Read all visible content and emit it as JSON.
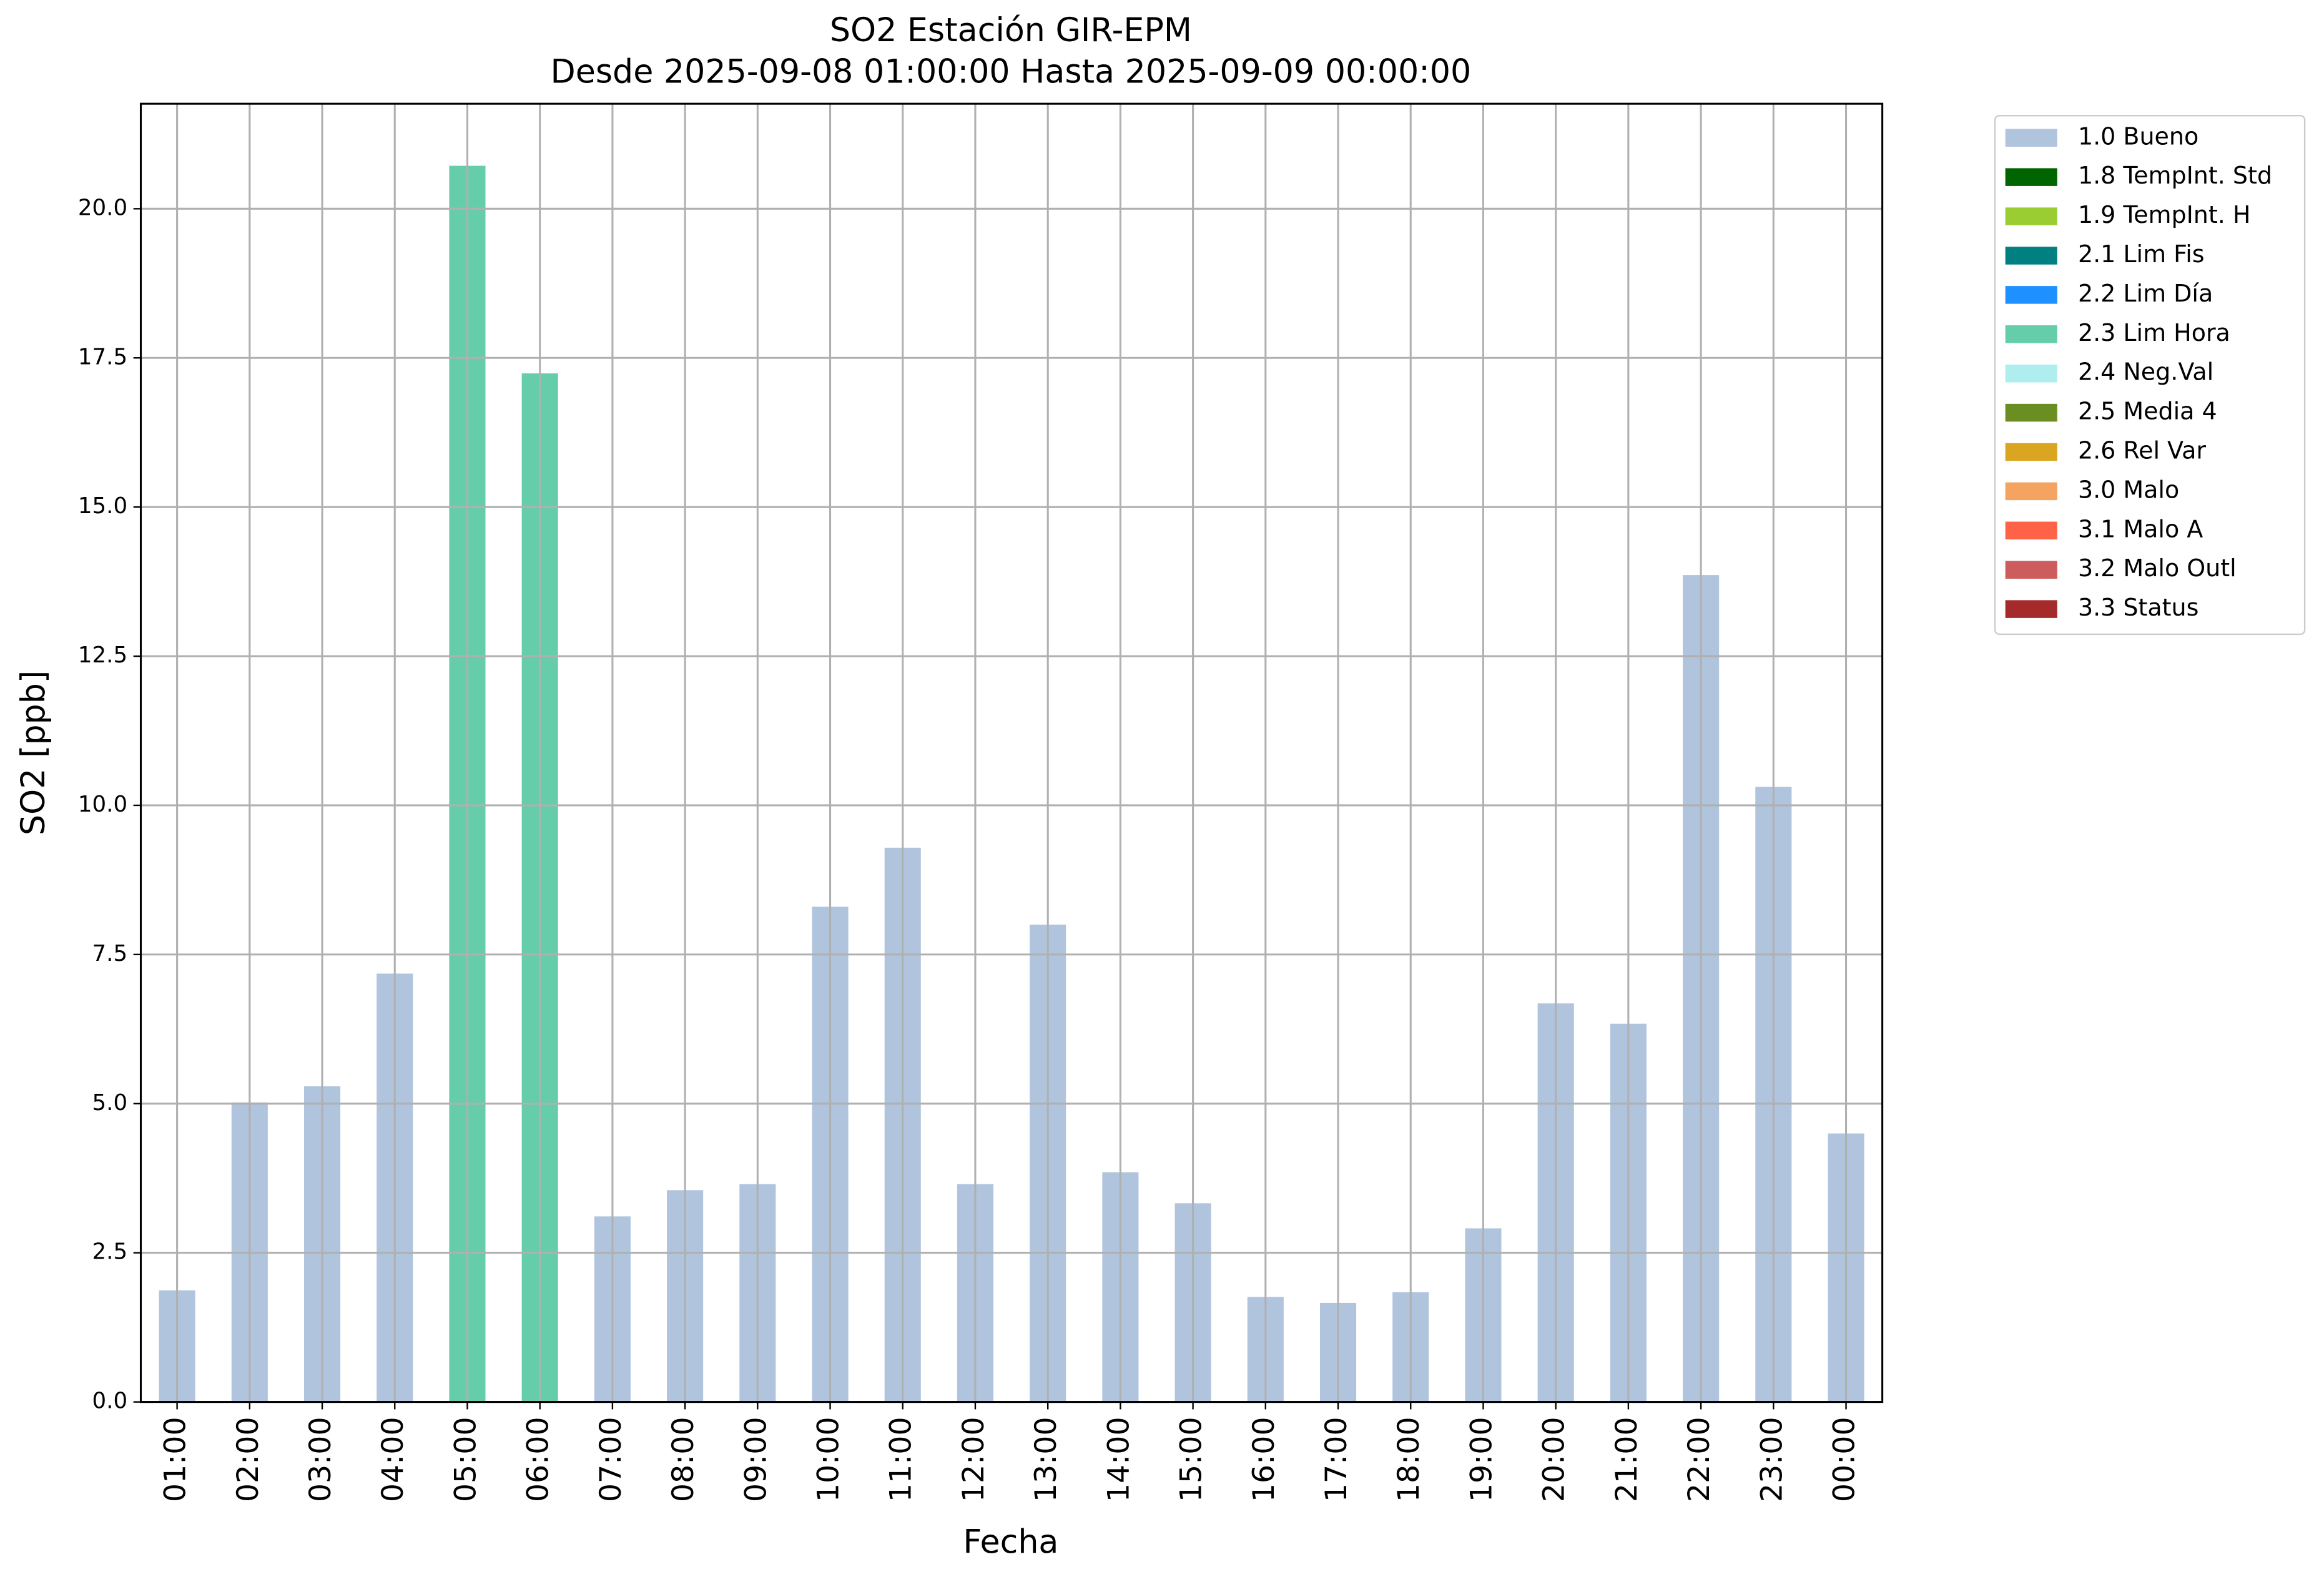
{
  "chart_data": {
    "type": "bar",
    "stacked": true,
    "title": "SO2 Estación GIR-EPM",
    "subtitle": "Desde 2025-09-08 01:00:00 Hasta 2025-09-09 00:00:00",
    "x_label": "Fecha",
    "y_label": "SO2 [ppb]",
    "categories": [
      "01:00",
      "02:00",
      "03:00",
      "04:00",
      "05:00",
      "06:00",
      "07:00",
      "08:00",
      "09:00",
      "10:00",
      "11:00",
      "12:00",
      "13:00",
      "14:00",
      "15:00",
      "16:00",
      "17:00",
      "18:00",
      "19:00",
      "20:00",
      "21:00",
      "22:00",
      "23:00",
      "00:00"
    ],
    "series": [
      {
        "name": "1.0 Bueno",
        "color": "#b0c4de",
        "values": [
          1.87,
          5.02,
          5.29,
          7.18,
          null,
          null,
          3.11,
          3.55,
          3.65,
          8.3,
          9.29,
          3.65,
          8.0,
          3.85,
          3.33,
          1.76,
          1.66,
          1.84,
          2.91,
          6.68,
          6.34,
          13.86,
          10.31,
          4.5
        ]
      },
      {
        "name": "1.8 TempInt. Std",
        "color": "#006400",
        "values": [
          null,
          null,
          null,
          null,
          null,
          null,
          null,
          null,
          null,
          null,
          null,
          null,
          null,
          null,
          null,
          null,
          null,
          null,
          null,
          null,
          null,
          null,
          null,
          null
        ]
      },
      {
        "name": "1.9 TempInt. H",
        "color": "#9acd32",
        "values": [
          null,
          null,
          null,
          null,
          null,
          null,
          null,
          null,
          null,
          null,
          null,
          null,
          null,
          null,
          null,
          null,
          null,
          null,
          null,
          null,
          null,
          null,
          null,
          null
        ]
      },
      {
        "name": "2.1 Lim Fis",
        "color": "#008080",
        "values": [
          null,
          null,
          null,
          null,
          null,
          null,
          null,
          null,
          null,
          null,
          null,
          null,
          null,
          null,
          null,
          null,
          null,
          null,
          null,
          null,
          null,
          null,
          null,
          null
        ]
      },
      {
        "name": "2.2 Lim Día",
        "color": "#1e90ff",
        "values": [
          null,
          null,
          null,
          null,
          null,
          null,
          null,
          null,
          null,
          null,
          null,
          null,
          null,
          null,
          null,
          null,
          null,
          null,
          null,
          null,
          null,
          null,
          null,
          null
        ]
      },
      {
        "name": "2.3 Lim Hora",
        "color": "#66cdaa",
        "values": [
          null,
          null,
          null,
          null,
          20.72,
          17.24,
          null,
          null,
          null,
          null,
          null,
          null,
          null,
          null,
          null,
          null,
          null,
          null,
          null,
          null,
          null,
          null,
          null,
          null
        ]
      },
      {
        "name": "2.4 Neg.Val",
        "color": "#afeeee",
        "values": [
          null,
          null,
          null,
          null,
          null,
          null,
          null,
          null,
          null,
          null,
          null,
          null,
          null,
          null,
          null,
          null,
          null,
          null,
          null,
          null,
          null,
          null,
          null,
          null
        ]
      },
      {
        "name": "2.5 Media 4",
        "color": "#6b8e23",
        "values": [
          null,
          null,
          null,
          null,
          null,
          null,
          null,
          null,
          null,
          null,
          null,
          null,
          null,
          null,
          null,
          null,
          null,
          null,
          null,
          null,
          null,
          null,
          null,
          null
        ]
      },
      {
        "name": "2.6 Rel Var",
        "color": "#daa520",
        "values": [
          null,
          null,
          null,
          null,
          null,
          null,
          null,
          null,
          null,
          null,
          null,
          null,
          null,
          null,
          null,
          null,
          null,
          null,
          null,
          null,
          null,
          null,
          null,
          null
        ]
      },
      {
        "name": "3.0 Malo",
        "color": "#f4a460",
        "values": [
          null,
          null,
          null,
          null,
          null,
          null,
          null,
          null,
          null,
          null,
          null,
          null,
          null,
          null,
          null,
          null,
          null,
          null,
          null,
          null,
          null,
          null,
          null,
          null
        ]
      },
      {
        "name": "3.1 Malo A",
        "color": "#ff6347",
        "values": [
          null,
          null,
          null,
          null,
          null,
          null,
          null,
          null,
          null,
          null,
          null,
          null,
          null,
          null,
          null,
          null,
          null,
          null,
          null,
          null,
          null,
          null,
          null,
          null
        ]
      },
      {
        "name": "3.2 Malo Outl",
        "color": "#cd5c5c",
        "values": [
          null,
          null,
          null,
          null,
          null,
          null,
          null,
          null,
          null,
          null,
          null,
          null,
          null,
          null,
          null,
          null,
          null,
          null,
          null,
          null,
          null,
          null,
          null,
          null
        ]
      },
      {
        "name": "3.3 Status",
        "color": "#a52a2a",
        "values": [
          null,
          null,
          null,
          null,
          null,
          null,
          null,
          null,
          null,
          null,
          null,
          null,
          null,
          null,
          null,
          null,
          null,
          null,
          null,
          null,
          null,
          null,
          null,
          null
        ]
      }
    ],
    "ylim": [
      0,
      21.76
    ],
    "yticks": [
      {
        "value": 0,
        "label": "0.0"
      },
      {
        "value": 2.5,
        "label": "2.5"
      },
      {
        "value": 5,
        "label": "5.0"
      },
      {
        "value": 7.5,
        "label": "7.5"
      },
      {
        "value": 10,
        "label": "10.0"
      },
      {
        "value": 12.5,
        "label": "12.5"
      },
      {
        "value": 15,
        "label": "15.0"
      },
      {
        "value": 17.5,
        "label": "17.5"
      },
      {
        "value": 20,
        "label": "20.0"
      }
    ],
    "grid": true,
    "legend": "outside-upper-right"
  }
}
